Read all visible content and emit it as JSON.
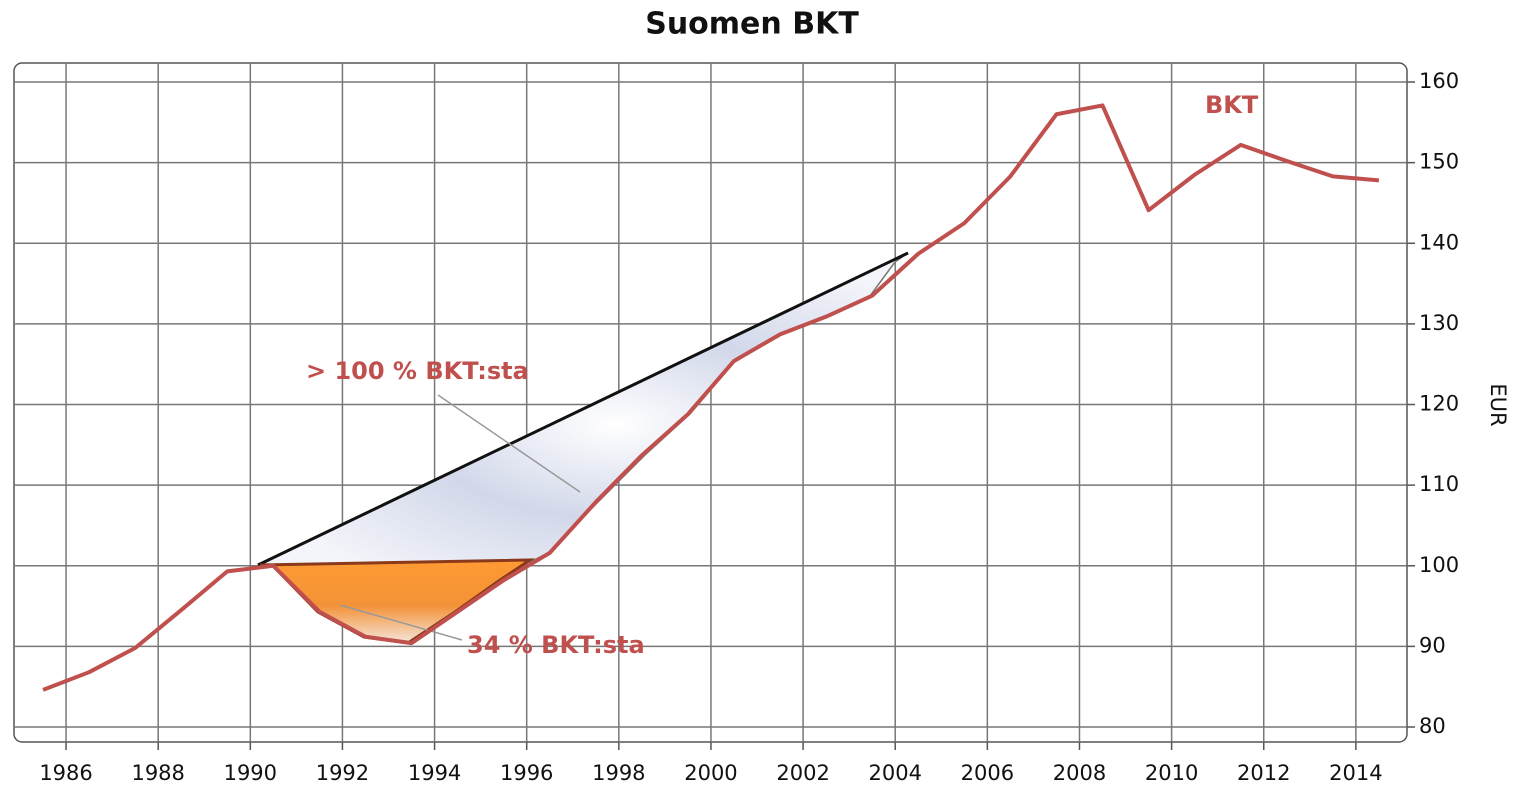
{
  "chart_data": {
    "type": "line",
    "title": "Suomen BKT",
    "y_label": "EUR",
    "x": [
      1985.5,
      1986.5,
      1987.5,
      1988.5,
      1989.5,
      1990.5,
      1991.5,
      1992.5,
      1993.5,
      1994.5,
      1995.5,
      1996.5,
      1997.5,
      1998.5,
      1999.5,
      2000.5,
      2001.5,
      2002.5,
      2003.5,
      2004.5,
      2005.5,
      2006.5,
      2007.5,
      2008.5,
      2009.5,
      2010.5,
      2011.5,
      2012.5,
      2013.5,
      2014.5
    ],
    "series": [
      {
        "name": "BKT",
        "color": "#c0504d",
        "values": [
          84.6,
          86.8,
          89.8,
          94.5,
          99.3,
          100,
          94.3,
          91.2,
          90.4,
          94.3,
          98.2,
          101.6,
          107.9,
          113.7,
          118.8,
          125.4,
          128.7,
          130.9,
          133.5,
          138.7,
          142.5,
          148.3,
          156,
          157.1,
          144.1,
          148.5,
          152.2,
          150.2,
          148.3,
          147.8
        ]
      }
    ],
    "annotations": [
      "> 100 % BKT:sta",
      "34 % BKT:sta"
    ],
    "xlim": [
      1984.87,
      2015.11
    ],
    "xticks": [
      1986,
      1988,
      1990,
      1992,
      1994,
      1996,
      1998,
      2000,
      2002,
      2004,
      2006,
      2008,
      2010,
      2012,
      2014
    ],
    "ylim": [
      78.14,
      162.36
    ],
    "yticks": [
      80,
      90,
      100,
      110,
      120,
      130,
      140,
      150,
      160
    ],
    "grid": true
  }
}
